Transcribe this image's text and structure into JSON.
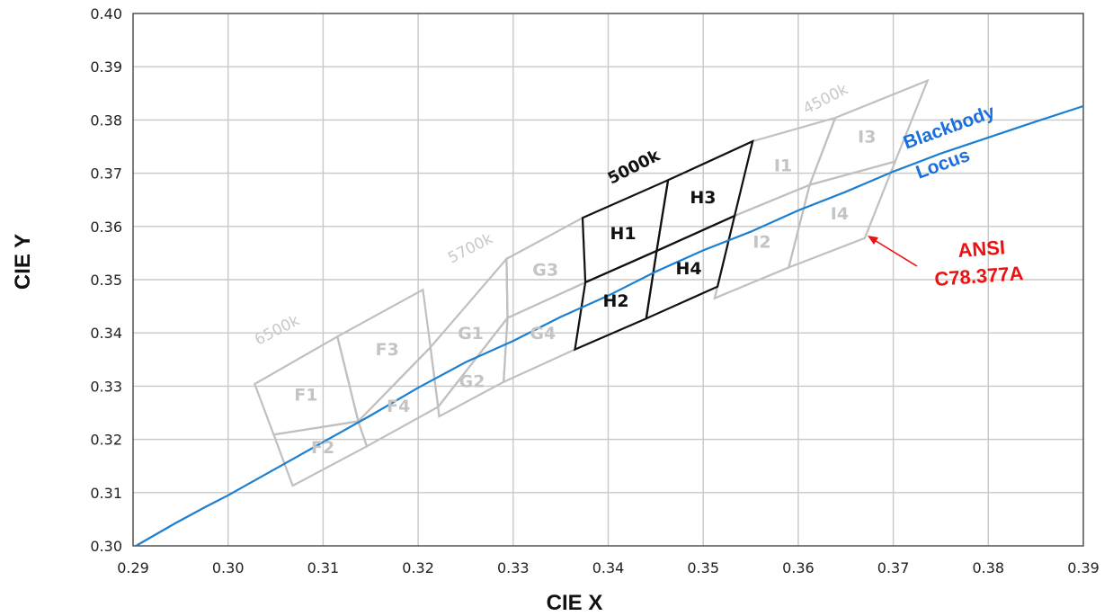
{
  "chart_data": {
    "type": "scatter",
    "title": "",
    "xlabel": "CIE X",
    "ylabel": "CIE Y",
    "xlim": [
      0.29,
      0.39
    ],
    "ylim": [
      0.3,
      0.4
    ],
    "x_ticks": [
      "0.29",
      "0.30",
      "0.31",
      "0.32",
      "0.33",
      "0.34",
      "0.35",
      "0.36",
      "0.37",
      "0.38",
      "0.39"
    ],
    "y_ticks": [
      "0.30",
      "0.31",
      "0.32",
      "0.33",
      "0.34",
      "0.35",
      "0.36",
      "0.37",
      "0.38",
      "0.39",
      "0.40"
    ],
    "grid": true,
    "series": [
      {
        "name": "Blackbody Locus",
        "label_lines": [
          "Blackbody",
          "Locus"
        ],
        "color": "#1c7fd0",
        "x": [
          0.2903,
          0.2945,
          0.2975,
          0.3,
          0.305,
          0.31,
          0.315,
          0.32,
          0.325,
          0.33,
          0.335,
          0.34,
          0.345,
          0.35,
          0.355,
          0.36,
          0.365,
          0.37,
          0.375,
          0.38,
          0.385,
          0.39
        ],
        "y": [
          0.3,
          0.3043,
          0.3072,
          0.3095,
          0.3145,
          0.3195,
          0.3245,
          0.3297,
          0.3345,
          0.3385,
          0.343,
          0.347,
          0.3515,
          0.3555,
          0.359,
          0.363,
          0.3665,
          0.3703,
          0.3737,
          0.3767,
          0.3797,
          0.3826
        ]
      }
    ],
    "bins": [
      {
        "label": "F1",
        "highlight": false,
        "corners": [
          [
            0.3028,
            0.3304
          ],
          [
            0.3115,
            0.3393
          ],
          [
            0.3137,
            0.3234
          ],
          [
            0.3048,
            0.3209
          ]
        ]
      },
      {
        "label": "F2",
        "highlight": false,
        "corners": [
          [
            0.3048,
            0.3209
          ],
          [
            0.3137,
            0.3234
          ],
          [
            0.3146,
            0.3187
          ],
          [
            0.3068,
            0.3113
          ]
        ]
      },
      {
        "label": "F3",
        "highlight": false,
        "corners": [
          [
            0.3115,
            0.3393
          ],
          [
            0.3205,
            0.3481
          ],
          [
            0.3213,
            0.3373
          ],
          [
            0.3137,
            0.3234
          ]
        ]
      },
      {
        "label": "F4",
        "highlight": false,
        "corners": [
          [
            0.3137,
            0.3234
          ],
          [
            0.3213,
            0.3373
          ],
          [
            0.3221,
            0.3261
          ],
          [
            0.3146,
            0.3187
          ]
        ]
      },
      {
        "label": "G1",
        "highlight": false,
        "corners": [
          [
            0.3213,
            0.3373
          ],
          [
            0.3293,
            0.3539
          ],
          [
            0.3294,
            0.3428
          ],
          [
            0.3221,
            0.3261
          ]
        ]
      },
      {
        "label": "G2",
        "highlight": false,
        "corners": [
          [
            0.3221,
            0.3261
          ],
          [
            0.3294,
            0.3428
          ],
          [
            0.329,
            0.3308
          ],
          [
            0.3222,
            0.3243
          ]
        ]
      },
      {
        "label": "G3",
        "highlight": false,
        "corners": [
          [
            0.3293,
            0.3539
          ],
          [
            0.3373,
            0.3616
          ],
          [
            0.3376,
            0.3495
          ],
          [
            0.3294,
            0.3428
          ]
        ]
      },
      {
        "label": "G4",
        "highlight": false,
        "corners": [
          [
            0.3294,
            0.3428
          ],
          [
            0.3376,
            0.3495
          ],
          [
            0.3365,
            0.3369
          ],
          [
            0.329,
            0.3308
          ]
        ]
      },
      {
        "label": "H1",
        "highlight": true,
        "corners": [
          [
            0.3373,
            0.3616
          ],
          [
            0.3463,
            0.3687
          ],
          [
            0.3451,
            0.3554
          ],
          [
            0.3376,
            0.3495
          ]
        ]
      },
      {
        "label": "H2",
        "highlight": true,
        "corners": [
          [
            0.3376,
            0.3495
          ],
          [
            0.3451,
            0.3554
          ],
          [
            0.344,
            0.3427
          ],
          [
            0.3365,
            0.3369
          ]
        ]
      },
      {
        "label": "H3",
        "highlight": true,
        "corners": [
          [
            0.3463,
            0.3687
          ],
          [
            0.3552,
            0.376
          ],
          [
            0.3533,
            0.362
          ],
          [
            0.3451,
            0.3554
          ]
        ]
      },
      {
        "label": "H4",
        "highlight": true,
        "corners": [
          [
            0.3451,
            0.3554
          ],
          [
            0.3533,
            0.362
          ],
          [
            0.3515,
            0.3487
          ],
          [
            0.344,
            0.3427
          ]
        ]
      },
      {
        "label": "I1",
        "highlight": false,
        "corners": [
          [
            0.3533,
            0.362
          ],
          [
            0.3552,
            0.376
          ],
          [
            0.3639,
            0.3804
          ],
          [
            0.3612,
            0.3678
          ]
        ]
      },
      {
        "label": "I2",
        "highlight": false,
        "corners": [
          [
            0.3533,
            0.362
          ],
          [
            0.3612,
            0.3678
          ],
          [
            0.359,
            0.3523
          ],
          [
            0.3512,
            0.3465
          ]
        ]
      },
      {
        "label": "I3",
        "highlight": false,
        "corners": [
          [
            0.3612,
            0.3678
          ],
          [
            0.3639,
            0.3804
          ],
          [
            0.3736,
            0.3874
          ],
          [
            0.3702,
            0.3722
          ]
        ]
      },
      {
        "label": "I4",
        "highlight": false,
        "corners": [
          [
            0.3612,
            0.3678
          ],
          [
            0.3702,
            0.3722
          ],
          [
            0.367,
            0.3578
          ],
          [
            0.359,
            0.3523
          ]
        ]
      }
    ],
    "cct_labels": [
      {
        "text": "6500k",
        "highlight": false
      },
      {
        "text": "5700k",
        "highlight": false
      },
      {
        "text": "5000k",
        "highlight": true
      },
      {
        "text": "4500k",
        "highlight": false
      }
    ],
    "annotations": [
      {
        "lines": [
          "ANSI",
          "C78.377A"
        ],
        "color": "#ee1111",
        "arrow_to": [
          0.367,
          0.3578
        ]
      }
    ]
  }
}
